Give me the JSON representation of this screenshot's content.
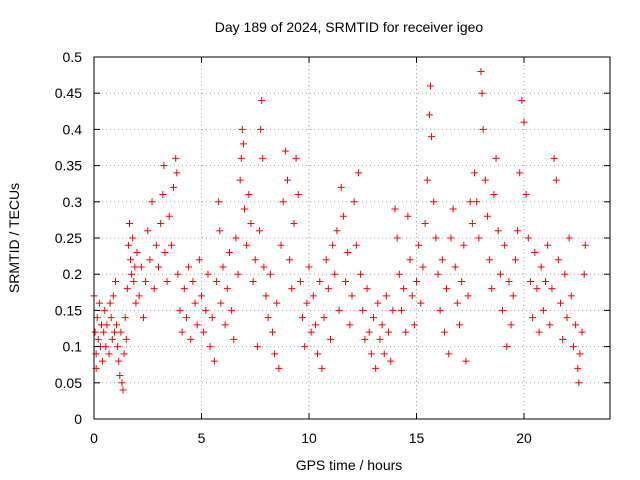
{
  "chart_data": {
    "type": "scatter",
    "title": "Day 189 of 2024, SRMTID for receiver igeo",
    "xlabel": "GPS time / hours",
    "ylabel": "SRMTID / TECUs",
    "xlim": [
      0,
      24
    ],
    "ylim": [
      0,
      0.5
    ],
    "xticks": [
      0,
      5,
      10,
      15,
      20
    ],
    "yticks": [
      0,
      0.05,
      0.1,
      0.15,
      0.2,
      0.25,
      0.3,
      0.35,
      0.4,
      0.45,
      0.5
    ],
    "xtick_labels": [
      "0",
      "5",
      "10",
      "15",
      "20"
    ],
    "ytick_labels": [
      "0",
      "0.05",
      "0.1",
      "0.15",
      "0.2",
      "0.25",
      "0.3",
      "0.35",
      "0.4",
      "0.45",
      "0.5"
    ],
    "grid": true,
    "marker": "+",
    "color": "#ff0000",
    "series": [
      {
        "name": "SRMTID",
        "points": [
          [
            0.0,
            0.17
          ],
          [
            0.05,
            0.12
          ],
          [
            0.1,
            0.09
          ],
          [
            0.1,
            0.07
          ],
          [
            0.15,
            0.14
          ],
          [
            0.2,
            0.11
          ],
          [
            0.25,
            0.16
          ],
          [
            0.3,
            0.1
          ],
          [
            0.35,
            0.13
          ],
          [
            0.4,
            0.08
          ],
          [
            0.45,
            0.12
          ],
          [
            0.5,
            0.15
          ],
          [
            0.55,
            0.1
          ],
          [
            0.6,
            0.13
          ],
          [
            0.7,
            0.09
          ],
          [
            0.75,
            0.16
          ],
          [
            0.8,
            0.14
          ],
          [
            0.85,
            0.11
          ],
          [
            0.9,
            0.17
          ],
          [
            0.95,
            0.12
          ],
          [
            1.0,
            0.19
          ],
          [
            1.05,
            0.13
          ],
          [
            1.1,
            0.1
          ],
          [
            1.15,
            0.08
          ],
          [
            1.2,
            0.06
          ],
          [
            1.25,
            0.12
          ],
          [
            1.3,
            0.05
          ],
          [
            1.35,
            0.04
          ],
          [
            1.4,
            0.09
          ],
          [
            1.45,
            0.14
          ],
          [
            1.5,
            0.11
          ],
          [
            1.55,
            0.18
          ],
          [
            1.6,
            0.24
          ],
          [
            1.65,
            0.27
          ],
          [
            1.7,
            0.22
          ],
          [
            1.75,
            0.2
          ],
          [
            1.8,
            0.25
          ],
          [
            1.85,
            0.19
          ],
          [
            1.9,
            0.21
          ],
          [
            1.95,
            0.16
          ],
          [
            2.0,
            0.23
          ],
          [
            2.1,
            0.17
          ],
          [
            2.2,
            0.21
          ],
          [
            2.3,
            0.14
          ],
          [
            2.4,
            0.19
          ],
          [
            2.5,
            0.26
          ],
          [
            2.6,
            0.22
          ],
          [
            2.7,
            0.3
          ],
          [
            2.8,
            0.18
          ],
          [
            2.9,
            0.24
          ],
          [
            3.0,
            0.21
          ],
          [
            3.1,
            0.27
          ],
          [
            3.2,
            0.31
          ],
          [
            3.25,
            0.35
          ],
          [
            3.3,
            0.23
          ],
          [
            3.4,
            0.19
          ],
          [
            3.5,
            0.28
          ],
          [
            3.6,
            0.24
          ],
          [
            3.7,
            0.32
          ],
          [
            3.8,
            0.36
          ],
          [
            3.85,
            0.34
          ],
          [
            3.9,
            0.2
          ],
          [
            4.0,
            0.15
          ],
          [
            4.1,
            0.12
          ],
          [
            4.2,
            0.18
          ],
          [
            4.3,
            0.14
          ],
          [
            4.4,
            0.21
          ],
          [
            4.5,
            0.11
          ],
          [
            4.6,
            0.19
          ],
          [
            4.7,
            0.16
          ],
          [
            4.8,
            0.13
          ],
          [
            4.9,
            0.22
          ],
          [
            5.0,
            0.17
          ],
          [
            5.1,
            0.12
          ],
          [
            5.2,
            0.15
          ],
          [
            5.3,
            0.2
          ],
          [
            5.4,
            0.1
          ],
          [
            5.5,
            0.14
          ],
          [
            5.6,
            0.08
          ],
          [
            5.7,
            0.19
          ],
          [
            5.8,
            0.3
          ],
          [
            5.85,
            0.26
          ],
          [
            5.9,
            0.16
          ],
          [
            6.0,
            0.21
          ],
          [
            6.1,
            0.13
          ],
          [
            6.2,
            0.18
          ],
          [
            6.3,
            0.23
          ],
          [
            6.4,
            0.15
          ],
          [
            6.5,
            0.11
          ],
          [
            6.6,
            0.25
          ],
          [
            6.7,
            0.2
          ],
          [
            6.8,
            0.33
          ],
          [
            6.85,
            0.36
          ],
          [
            6.9,
            0.4
          ],
          [
            6.95,
            0.38
          ],
          [
            7.0,
            0.29
          ],
          [
            7.1,
            0.24
          ],
          [
            7.2,
            0.31
          ],
          [
            7.3,
            0.27
          ],
          [
            7.4,
            0.19
          ],
          [
            7.5,
            0.22
          ],
          [
            7.6,
            0.1
          ],
          [
            7.7,
            0.26
          ],
          [
            7.75,
            0.4
          ],
          [
            7.8,
            0.44
          ],
          [
            7.85,
            0.36
          ],
          [
            7.9,
            0.21
          ],
          [
            8.0,
            0.17
          ],
          [
            8.1,
            0.14
          ],
          [
            8.2,
            0.2
          ],
          [
            8.3,
            0.12
          ],
          [
            8.4,
            0.09
          ],
          [
            8.5,
            0.16
          ],
          [
            8.6,
            0.07
          ],
          [
            8.7,
            0.24
          ],
          [
            8.8,
            0.3
          ],
          [
            8.9,
            0.37
          ],
          [
            9.0,
            0.33
          ],
          [
            9.1,
            0.22
          ],
          [
            9.2,
            0.18
          ],
          [
            9.3,
            0.27
          ],
          [
            9.4,
            0.36
          ],
          [
            9.5,
            0.31
          ],
          [
            9.6,
            0.19
          ],
          [
            9.7,
            0.14
          ],
          [
            9.8,
            0.1
          ],
          [
            9.9,
            0.16
          ],
          [
            10.0,
            0.21
          ],
          [
            10.1,
            0.12
          ],
          [
            10.2,
            0.17
          ],
          [
            10.3,
            0.13
          ],
          [
            10.4,
            0.09
          ],
          [
            10.5,
            0.19
          ],
          [
            10.6,
            0.07
          ],
          [
            10.7,
            0.14
          ],
          [
            10.8,
            0.22
          ],
          [
            10.9,
            0.18
          ],
          [
            11.0,
            0.11
          ],
          [
            11.1,
            0.24
          ],
          [
            11.2,
            0.2
          ],
          [
            11.3,
            0.26
          ],
          [
            11.4,
            0.15
          ],
          [
            11.5,
            0.32
          ],
          [
            11.6,
            0.28
          ],
          [
            11.7,
            0.19
          ],
          [
            11.8,
            0.23
          ],
          [
            11.9,
            0.13
          ],
          [
            12.0,
            0.17
          ],
          [
            12.1,
            0.3
          ],
          [
            12.2,
            0.24
          ],
          [
            12.3,
            0.34
          ],
          [
            12.4,
            0.2
          ],
          [
            12.5,
            0.15
          ],
          [
            12.6,
            0.11
          ],
          [
            12.7,
            0.18
          ],
          [
            12.8,
            0.12
          ],
          [
            12.9,
            0.09
          ],
          [
            13.0,
            0.14
          ],
          [
            13.1,
            0.07
          ],
          [
            13.2,
            0.16
          ],
          [
            13.3,
            0.11
          ],
          [
            13.4,
            0.13
          ],
          [
            13.5,
            0.09
          ],
          [
            13.6,
            0.17
          ],
          [
            13.7,
            0.12
          ],
          [
            13.8,
            0.08
          ],
          [
            13.9,
            0.15
          ],
          [
            14.0,
            0.29
          ],
          [
            14.1,
            0.25
          ],
          [
            14.2,
            0.2
          ],
          [
            14.3,
            0.15
          ],
          [
            14.4,
            0.18
          ],
          [
            14.5,
            0.12
          ],
          [
            14.6,
            0.28
          ],
          [
            14.7,
            0.22
          ],
          [
            14.8,
            0.17
          ],
          [
            14.9,
            0.13
          ],
          [
            15.0,
            0.19
          ],
          [
            15.1,
            0.24
          ],
          [
            15.2,
            0.16
          ],
          [
            15.3,
            0.21
          ],
          [
            15.4,
            0.27
          ],
          [
            15.5,
            0.33
          ],
          [
            15.6,
            0.42
          ],
          [
            15.65,
            0.46
          ],
          [
            15.7,
            0.39
          ],
          [
            15.8,
            0.3
          ],
          [
            15.9,
            0.25
          ],
          [
            16.0,
            0.2
          ],
          [
            16.1,
            0.15
          ],
          [
            16.2,
            0.22
          ],
          [
            16.3,
            0.12
          ],
          [
            16.4,
            0.18
          ],
          [
            16.5,
            0.09
          ],
          [
            16.6,
            0.25
          ],
          [
            16.7,
            0.29
          ],
          [
            16.8,
            0.21
          ],
          [
            16.9,
            0.16
          ],
          [
            17.0,
            0.13
          ],
          [
            17.1,
            0.19
          ],
          [
            17.2,
            0.24
          ],
          [
            17.3,
            0.08
          ],
          [
            17.4,
            0.17
          ],
          [
            17.5,
            0.3
          ],
          [
            17.6,
            0.27
          ],
          [
            17.7,
            0.34
          ],
          [
            17.8,
            0.3
          ],
          [
            17.9,
            0.25
          ],
          [
            18.0,
            0.48
          ],
          [
            18.05,
            0.45
          ],
          [
            18.1,
            0.4
          ],
          [
            18.2,
            0.33
          ],
          [
            18.3,
            0.28
          ],
          [
            18.4,
            0.22
          ],
          [
            18.5,
            0.18
          ],
          [
            18.6,
            0.31
          ],
          [
            18.7,
            0.36
          ],
          [
            18.8,
            0.26
          ],
          [
            18.9,
            0.2
          ],
          [
            19.0,
            0.15
          ],
          [
            19.1,
            0.24
          ],
          [
            19.2,
            0.1
          ],
          [
            19.3,
            0.19
          ],
          [
            19.4,
            0.13
          ],
          [
            19.5,
            0.17
          ],
          [
            19.6,
            0.22
          ],
          [
            19.7,
            0.26
          ],
          [
            19.8,
            0.34
          ],
          [
            19.9,
            0.44
          ],
          [
            20.0,
            0.41
          ],
          [
            20.1,
            0.31
          ],
          [
            20.2,
            0.25
          ],
          [
            20.3,
            0.19
          ],
          [
            20.4,
            0.14
          ],
          [
            20.5,
            0.23
          ],
          [
            20.6,
            0.18
          ],
          [
            20.7,
            0.12
          ],
          [
            20.8,
            0.21
          ],
          [
            20.9,
            0.15
          ],
          [
            21.0,
            0.19
          ],
          [
            21.1,
            0.24
          ],
          [
            21.2,
            0.13
          ],
          [
            21.3,
            0.18
          ],
          [
            21.4,
            0.36
          ],
          [
            21.5,
            0.33
          ],
          [
            21.6,
            0.22
          ],
          [
            21.7,
            0.16
          ],
          [
            21.8,
            0.11
          ],
          [
            21.9,
            0.2
          ],
          [
            22.0,
            0.14
          ],
          [
            22.1,
            0.25
          ],
          [
            22.2,
            0.17
          ],
          [
            22.3,
            0.1
          ],
          [
            22.4,
            0.13
          ],
          [
            22.5,
            0.07
          ],
          [
            22.55,
            0.05
          ],
          [
            22.6,
            0.09
          ],
          [
            22.7,
            0.12
          ],
          [
            22.8,
            0.2
          ],
          [
            22.85,
            0.24
          ]
        ]
      }
    ]
  }
}
